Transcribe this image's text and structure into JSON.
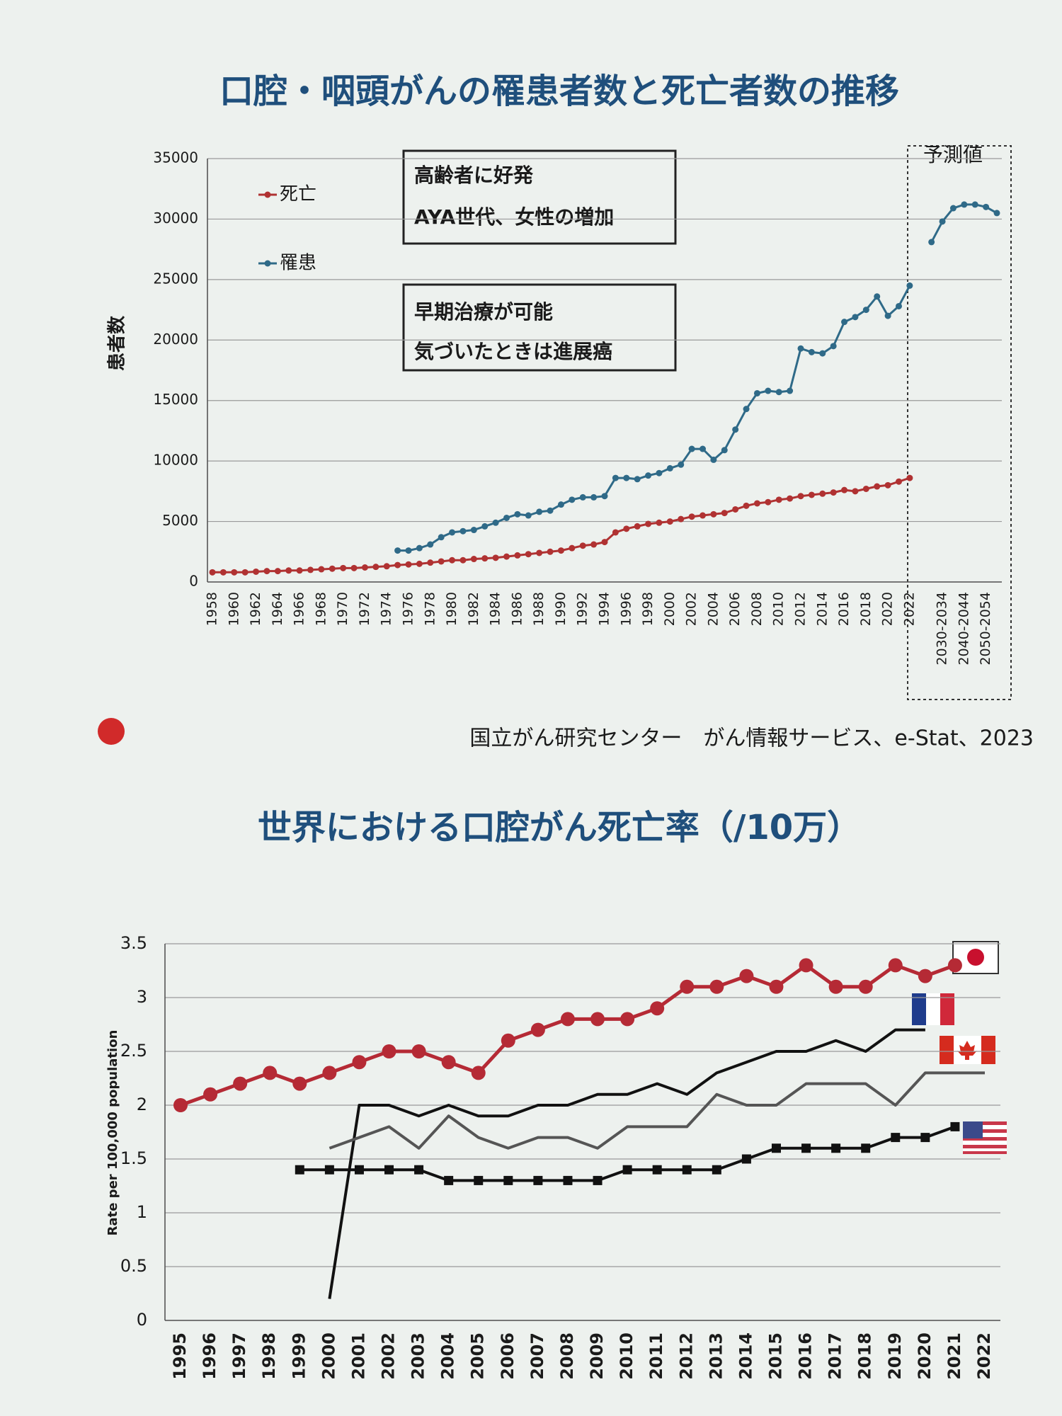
{
  "chart_data": [
    {
      "type": "line",
      "title": "口腔・咽頭がんの罹患者数と死亡者数の推移",
      "ylabel": "患者数",
      "forecast_label": "予測値",
      "boxes": [
        [
          "高齢者に好発",
          "AYA世代、女性の増加"
        ],
        [
          "早期治療が可能",
          "気づいたときは進展癌"
        ]
      ],
      "source": "国立がん研究センター　がん情報サービス、e-Stat、2023",
      "categories": [
        "1958",
        null,
        "1960",
        null,
        "1962",
        null,
        "1964",
        null,
        "1966",
        null,
        "1968",
        null,
        "1970",
        null,
        "1972",
        null,
        "1974",
        null,
        "1976",
        null,
        "1978",
        null,
        "1980",
        null,
        "1982",
        null,
        "1984",
        null,
        "1986",
        null,
        "1988",
        null,
        "1990",
        null,
        "1992",
        null,
        "1994",
        null,
        "1996",
        null,
        "1998",
        null,
        "2000",
        null,
        "2002",
        null,
        "2004",
        null,
        "2006",
        null,
        "2008",
        null,
        "2010",
        null,
        "2012",
        null,
        "2014",
        null,
        "2016",
        null,
        "2018",
        null,
        "2020",
        null,
        "2022",
        null,
        null,
        "2030-2034",
        null,
        "2040-2044",
        null,
        "2050-2054",
        null
      ],
      "series": [
        {
          "name": "死亡",
          "color": "#b03232",
          "marker": "circle",
          "values": [
            800,
            800,
            800,
            800,
            850,
            900,
            900,
            950,
            950,
            1000,
            1050,
            1100,
            1150,
            1150,
            1200,
            1250,
            1300,
            1400,
            1450,
            1500,
            1600,
            1700,
            1800,
            1800,
            1900,
            1950,
            2000,
            2100,
            2200,
            2300,
            2400,
            2500,
            2600,
            2800,
            3000,
            3100,
            3300,
            4100,
            4400,
            4600,
            4800,
            4900,
            5000,
            5200,
            5400,
            5500,
            5600,
            5700,
            6000,
            6300,
            6500,
            6600,
            6800,
            6900,
            7100,
            7200,
            7300,
            7400,
            7600,
            7500,
            7700,
            7900,
            8000,
            8300,
            8600,
            null,
            null,
            null,
            null,
            null,
            null,
            null,
            null
          ]
        },
        {
          "name": "罹患",
          "color": "#2f6a88",
          "marker": "circle",
          "values": [
            null,
            null,
            null,
            null,
            null,
            null,
            null,
            null,
            null,
            null,
            null,
            null,
            null,
            null,
            null,
            null,
            null,
            2600,
            2600,
            2800,
            3100,
            3700,
            4100,
            4200,
            4300,
            4600,
            4900,
            5300,
            5600,
            5500,
            5800,
            5900,
            6400,
            6800,
            7000,
            7000,
            7100,
            8600,
            8600,
            8500,
            8800,
            9000,
            9400,
            9700,
            11000,
            11000,
            10100,
            10900,
            12600,
            14300,
            15600,
            15800,
            15700,
            15800,
            19300,
            19000,
            18900,
            19500,
            21500,
            21900,
            22500,
            23600,
            22000,
            22800,
            24500,
            null,
            28100,
            29800,
            30900,
            31200,
            31200,
            31000,
            30500
          ]
        }
      ],
      "ylim": [
        0,
        35000
      ],
      "yticks": [
        0,
        5000,
        10000,
        15000,
        20000,
        25000,
        30000,
        35000
      ],
      "grid": true
    },
    {
      "type": "line",
      "title": "世界における口腔がん死亡率（/10万）",
      "ylabel": "Rate per 100,000 population",
      "categories": [
        "1995",
        "1996",
        "1997",
        "1998",
        "1999",
        "2000",
        "2001",
        "2002",
        "2003",
        "2004",
        "2005",
        "2006",
        "2007",
        "2008",
        "2009",
        "2010",
        "2011",
        "2012",
        "2013",
        "2014",
        "2015",
        "2016",
        "2017",
        "2018",
        "2019",
        "2020",
        "2021",
        "2022"
      ],
      "series": [
        {
          "color": "#b52a35",
          "marker": "circle",
          "values": [
            2.0,
            2.1,
            2.2,
            2.3,
            2.2,
            2.3,
            2.4,
            2.5,
            2.5,
            2.4,
            2.3,
            2.6,
            2.7,
            2.8,
            2.8,
            2.8,
            2.9,
            3.1,
            3.1,
            3.2,
            3.1,
            3.3,
            3.1,
            3.1,
            3.3,
            3.2,
            3.3,
            null
          ]
        },
        {
          "color": "#111111",
          "marker": "none",
          "values": [
            null,
            null,
            null,
            null,
            null,
            0.2,
            2.0,
            2.0,
            1.9,
            2.0,
            1.9,
            1.9,
            2.0,
            2.0,
            2.1,
            2.1,
            2.2,
            2.1,
            2.3,
            2.4,
            2.5,
            2.5,
            2.6,
            2.5,
            2.7,
            2.7,
            null,
            null
          ]
        },
        {
          "color": "#555555",
          "marker": "none",
          "values": [
            null,
            null,
            null,
            null,
            null,
            1.6,
            1.7,
            1.8,
            1.6,
            1.9,
            1.7,
            1.6,
            1.7,
            1.7,
            1.6,
            1.8,
            1.8,
            1.8,
            2.1,
            2.0,
            2.0,
            2.2,
            2.2,
            2.2,
            2.0,
            2.3,
            2.3,
            2.3
          ]
        },
        {
          "color": "#111111",
          "marker": "square",
          "values": [
            null,
            null,
            null,
            null,
            1.4,
            1.4,
            1.4,
            1.4,
            1.4,
            1.3,
            1.3,
            1.3,
            1.3,
            1.3,
            1.3,
            1.4,
            1.4,
            1.4,
            1.4,
            1.5,
            1.6,
            1.6,
            1.6,
            1.6,
            1.7,
            1.7,
            1.8,
            null
          ]
        }
      ],
      "ylim": [
        0,
        3.5
      ],
      "yticks": [
        0,
        0.5,
        1,
        1.5,
        2,
        2.5,
        3,
        3.5
      ],
      "grid": true
    }
  ]
}
